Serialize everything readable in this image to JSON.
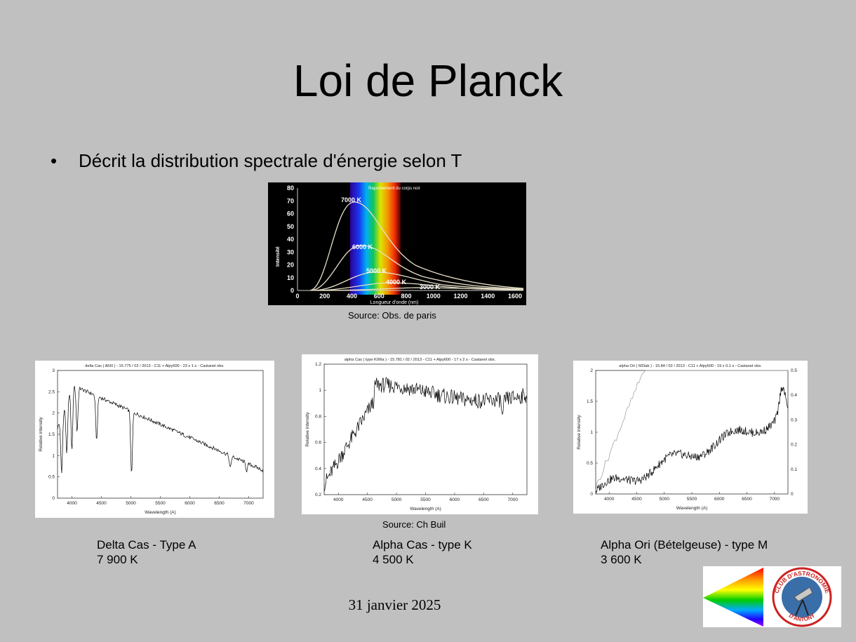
{
  "slide": {
    "title": "Loi de Planck",
    "bullet_symbol": "•",
    "bullet": "Décrit la distribution spectrale d'énergie selon T",
    "footer_date": "31 janvier 2025"
  },
  "planck_figure": {
    "source": "Source: Obs. de paris",
    "inner_title": "Rayonnement du corps noir",
    "y_label": "Intensité",
    "x_label": "Longueur d'onde (nm)",
    "x_ticks": [
      "0",
      "200",
      "400",
      "600",
      "800",
      "1000",
      "1200",
      "1400",
      "1600"
    ],
    "y_ticks": [
      "0",
      "10",
      "20",
      "30",
      "40",
      "50",
      "60",
      "70",
      "80"
    ],
    "curve_labels": [
      "7000 K",
      "6000 K",
      "5000 K",
      "4000 K",
      "3000 K"
    ]
  },
  "spectra": {
    "source": "Source: Ch Buil",
    "panels": [
      {
        "header": "delta Cas ( A5III ) - 15.775 / 02 / 2013 - C11 + Alpy600 - 23 x 1 s - Castanet obs.",
        "y_label": "Relative intensity",
        "x_label": "Wavelength (A)",
        "x_ticks": [
          "4000",
          "4500",
          "5000",
          "5500",
          "6000",
          "6500",
          "7000"
        ],
        "y_ticks": [
          "0",
          "0.5",
          "1",
          "1.5",
          "2",
          "2.5",
          "3"
        ],
        "caption_name": "Delta Cas - Type A",
        "caption_temp": "7 900 K"
      },
      {
        "header": "alpha Cas ( type K0IIIa ) - 15.781 / 02 / 2013 - C11 + Alpy600 - 17 x 2 s - Castanet obs.",
        "y_label": "Relative intensity",
        "x_label": "Wavelength (A)",
        "x_ticks": [
          "4000",
          "4500",
          "5000",
          "5500",
          "6000",
          "6500",
          "7000"
        ],
        "y_ticks": [
          "0.2",
          "0.4",
          "0.6",
          "0.8",
          "1",
          "1.2"
        ],
        "caption_name": "Alpha Cas - type K",
        "caption_temp": "4 500 K"
      },
      {
        "header": "alpha Ori ( M2Iab ) - 15.84 / 02 / 2013 - C11 + Alpy600 - 19 x 0.1 s - Castanet obs.",
        "y_label": "Relative intensity",
        "x_label": "Wavelength (A)",
        "x_ticks": [
          "4000",
          "4500",
          "5000",
          "5500",
          "6000",
          "6500",
          "7000"
        ],
        "y_ticks": [
          "0",
          "0.5",
          "1",
          "1.5",
          "2"
        ],
        "y2_ticks": [
          "0",
          "0.1",
          "0.2",
          "0.3",
          "0.4",
          "0.5"
        ],
        "caption_name": "Alpha Ori (Bételgeuse) - type M",
        "caption_temp": "3 600 K"
      }
    ]
  },
  "logo": {
    "text_top": "CLUB D'ASTRONOMIE",
    "text_bottom": "D'ANTONY"
  }
}
